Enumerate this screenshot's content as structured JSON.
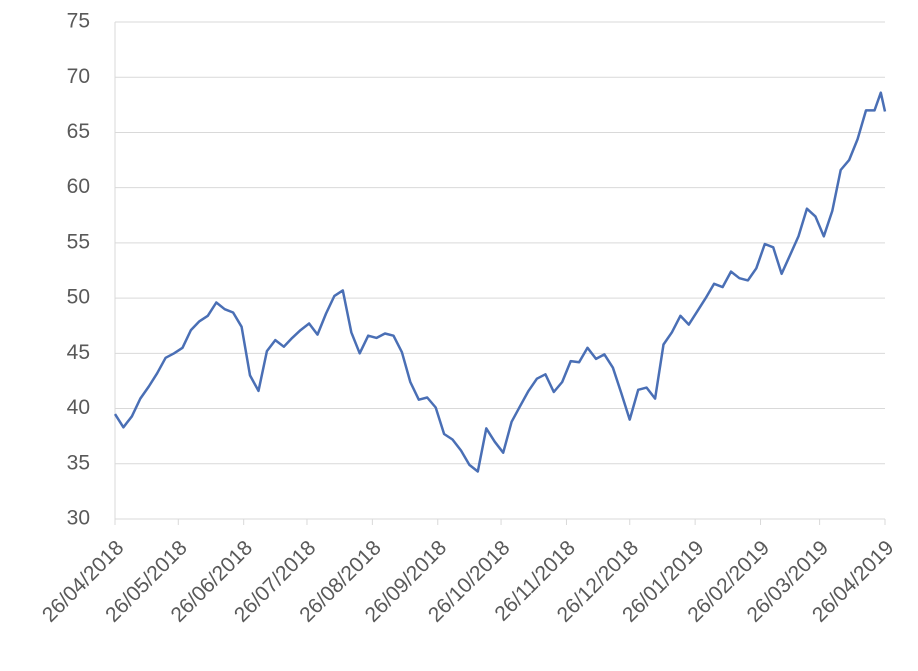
{
  "chart_data": {
    "type": "line",
    "x": [
      "2018-04-26",
      "2018-04-30",
      "2018-05-04",
      "2018-05-08",
      "2018-05-12",
      "2018-05-16",
      "2018-05-20",
      "2018-05-24",
      "2018-05-28",
      "2018-06-01",
      "2018-06-05",
      "2018-06-09",
      "2018-06-13",
      "2018-06-17",
      "2018-06-21",
      "2018-06-25",
      "2018-06-29",
      "2018-07-03",
      "2018-07-07",
      "2018-07-11",
      "2018-07-15",
      "2018-07-19",
      "2018-07-23",
      "2018-07-27",
      "2018-07-31",
      "2018-08-04",
      "2018-08-08",
      "2018-08-12",
      "2018-08-16",
      "2018-08-20",
      "2018-08-24",
      "2018-08-28",
      "2018-09-01",
      "2018-09-05",
      "2018-09-09",
      "2018-09-13",
      "2018-09-17",
      "2018-09-21",
      "2018-09-25",
      "2018-09-29",
      "2018-10-03",
      "2018-10-07",
      "2018-10-11",
      "2018-10-15",
      "2018-10-19",
      "2018-10-23",
      "2018-10-27",
      "2018-10-31",
      "2018-11-04",
      "2018-11-08",
      "2018-11-12",
      "2018-11-16",
      "2018-11-20",
      "2018-11-24",
      "2018-11-28",
      "2018-12-02",
      "2018-12-06",
      "2018-12-10",
      "2018-12-14",
      "2018-12-18",
      "2018-12-22",
      "2018-12-26",
      "2018-12-30",
      "2019-01-03",
      "2019-01-07",
      "2019-01-11",
      "2019-01-15",
      "2019-01-19",
      "2019-01-23",
      "2019-01-27",
      "2019-01-31",
      "2019-02-04",
      "2019-02-08",
      "2019-02-12",
      "2019-02-16",
      "2019-02-20",
      "2019-02-24",
      "2019-02-28",
      "2019-03-04",
      "2019-03-08",
      "2019-03-12",
      "2019-03-16",
      "2019-03-20",
      "2019-03-24",
      "2019-03-28",
      "2019-04-01",
      "2019-04-05",
      "2019-04-09",
      "2019-04-13",
      "2019-04-17",
      "2019-04-21",
      "2019-04-24",
      "2019-04-26"
    ],
    "values": [
      39.5,
      38.3,
      39.3,
      40.9,
      42.0,
      43.2,
      44.6,
      45.0,
      45.5,
      47.1,
      47.9,
      48.4,
      49.6,
      49.0,
      48.7,
      47.4,
      43.0,
      41.6,
      45.2,
      46.2,
      45.6,
      46.4,
      47.1,
      47.7,
      46.7,
      48.6,
      50.2,
      50.7,
      46.9,
      45.0,
      46.6,
      46.4,
      46.8,
      46.6,
      45.1,
      42.4,
      40.8,
      41.0,
      40.1,
      37.7,
      37.2,
      36.2,
      34.9,
      34.3,
      38.2,
      37.0,
      36.0,
      38.8,
      40.2,
      41.6,
      42.7,
      43.1,
      41.5,
      42.4,
      44.3,
      44.2,
      45.5,
      44.5,
      44.9,
      43.7,
      41.4,
      39.0,
      41.7,
      41.9,
      40.9,
      45.8,
      46.9,
      48.4,
      47.6,
      48.8,
      50.0,
      51.3,
      51.0,
      52.4,
      51.8,
      51.6,
      52.7,
      54.9,
      54.6,
      52.2,
      53.9,
      55.6,
      58.1,
      57.4,
      55.6,
      57.9,
      61.6,
      62.5,
      64.4,
      67.0,
      67.0,
      68.6,
      66.9
    ],
    "color": "#4a6fb5",
    "xlim": [
      "2018-04-26",
      "2019-04-26"
    ],
    "xticks": [
      {
        "value": "2018-04-26",
        "label": "26/04/2018"
      },
      {
        "value": "2018-05-26",
        "label": "26/05/2018"
      },
      {
        "value": "2018-06-26",
        "label": "26/06/2018"
      },
      {
        "value": "2018-07-26",
        "label": "26/07/2018"
      },
      {
        "value": "2018-08-26",
        "label": "26/08/2018"
      },
      {
        "value": "2018-09-26",
        "label": "26/09/2018"
      },
      {
        "value": "2018-10-26",
        "label": "26/10/2018"
      },
      {
        "value": "2018-11-26",
        "label": "26/11/2018"
      },
      {
        "value": "2018-12-26",
        "label": "26/12/2018"
      },
      {
        "value": "2019-01-26",
        "label": "26/01/2019"
      },
      {
        "value": "2019-02-26",
        "label": "26/02/2019"
      },
      {
        "value": "2019-03-26",
        "label": "26/03/2019"
      },
      {
        "value": "2019-04-26",
        "label": "26/04/2019"
      }
    ],
    "ylim": [
      30,
      75
    ],
    "yticks": [
      30,
      35,
      40,
      45,
      50,
      55,
      60,
      65,
      70,
      75
    ],
    "grid": true
  }
}
